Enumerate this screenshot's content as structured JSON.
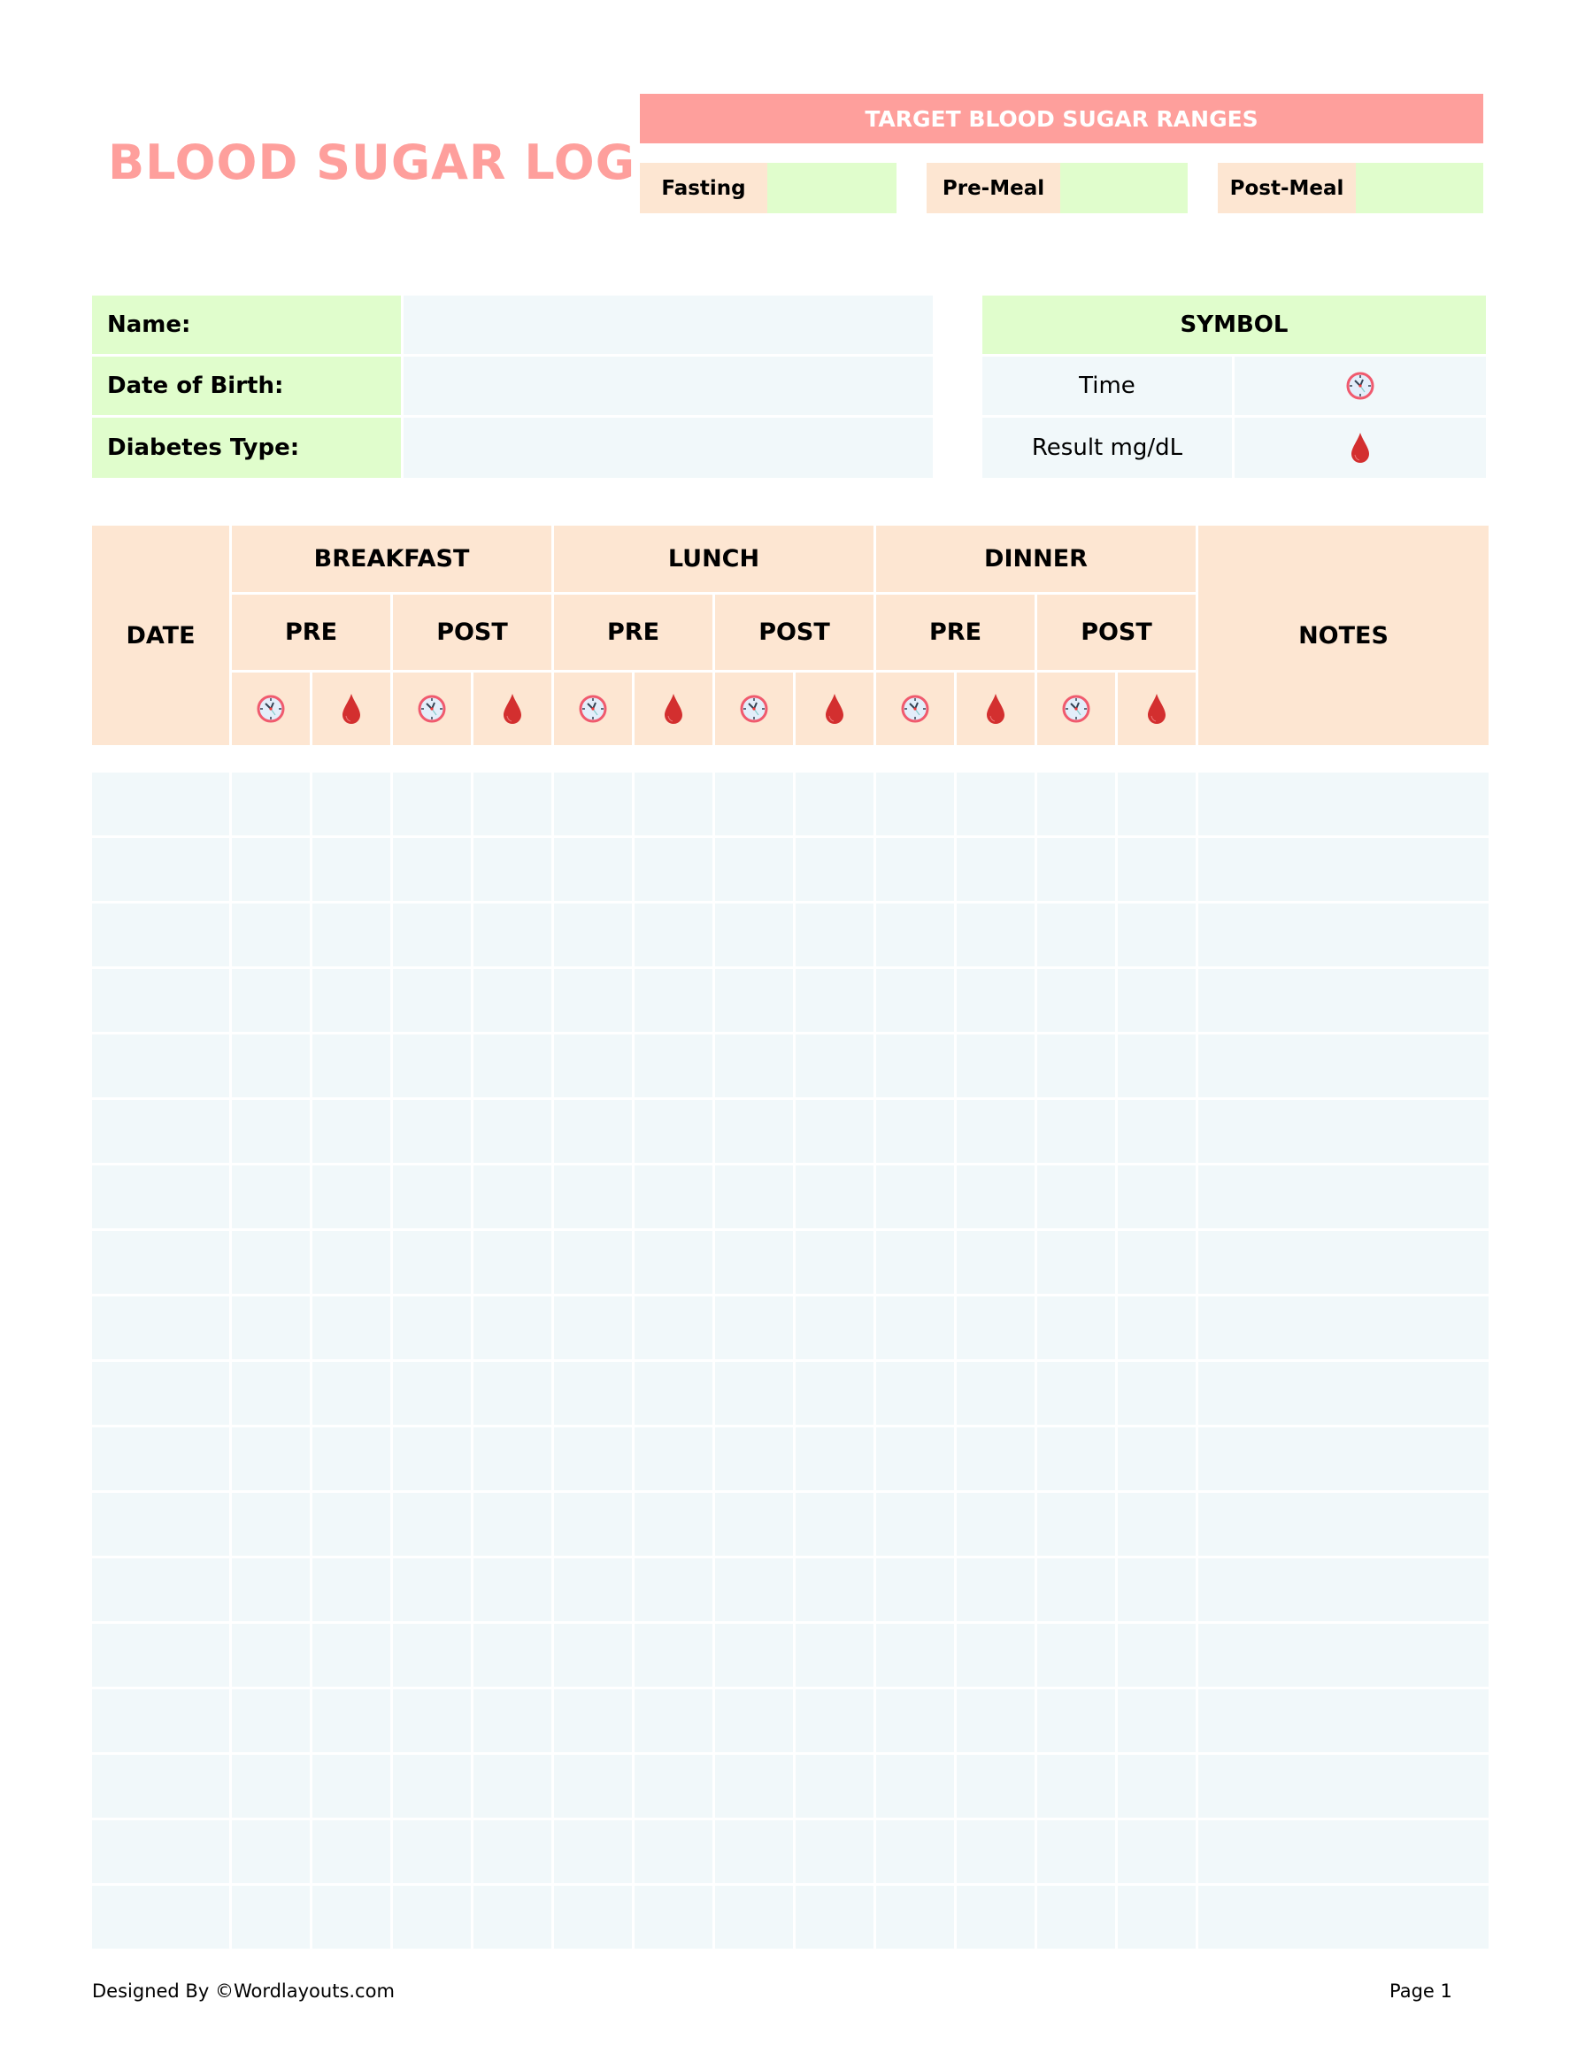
{
  "title": "BLOOD SUGAR LOG",
  "target": {
    "heading": "TARGET BLOOD SUGAR RANGES",
    "ranges": [
      {
        "label": "Fasting",
        "value": ""
      },
      {
        "label": "Pre-Meal",
        "value": ""
      },
      {
        "label": "Post-Meal",
        "value": ""
      }
    ]
  },
  "info": {
    "fields": [
      {
        "label": "Name:",
        "value": ""
      },
      {
        "label": "Date of Birth:",
        "value": ""
      },
      {
        "label": "Diabetes Type:",
        "value": ""
      }
    ]
  },
  "symbol": {
    "heading": "SYMBOL",
    "items": [
      {
        "label": "Time",
        "icon": "clock-icon"
      },
      {
        "label": "Result mg/dL",
        "icon": "blood-drop-icon"
      }
    ]
  },
  "log": {
    "date": "DATE",
    "notes": "NOTES",
    "meals": [
      "BREAKFAST",
      "LUNCH",
      "DINNER"
    ],
    "pre": "PRE",
    "post": "POST",
    "row_count": 18
  },
  "colors": {
    "accent": "#fe9f9c",
    "peach": "#fde6d2",
    "green": "#e0fdcc",
    "cell": "#f1f8fa",
    "drop": "#d32f2f",
    "clock": "#f05a6e"
  },
  "footer": {
    "credit": "Designed By ©Wordlayouts.com",
    "page": "Page 1"
  }
}
